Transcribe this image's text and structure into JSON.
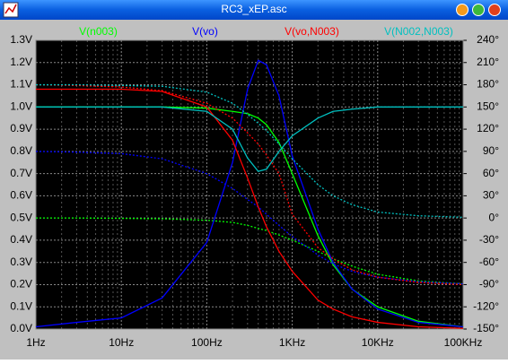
{
  "window": {
    "title": "RC3_xEP.asc"
  },
  "chart_data": {
    "type": "line",
    "xscale": "log",
    "grid": true,
    "x": [
      1,
      3,
      10,
      30,
      100,
      200,
      300,
      400,
      500,
      700,
      1000,
      2000,
      3000,
      5000,
      10000,
      30000,
      100000
    ],
    "xlim": [
      1,
      100000
    ],
    "xticks": [
      {
        "value": 1,
        "label": "1Hz"
      },
      {
        "value": 10,
        "label": "10Hz"
      },
      {
        "value": 100,
        "label": "100Hz"
      },
      {
        "value": 1000,
        "label": "1KHz"
      },
      {
        "value": 10000,
        "label": "10KHz"
      },
      {
        "value": 100000,
        "label": "100KHz"
      }
    ],
    "ylim": [
      0,
      1.3
    ],
    "yticks": [
      {
        "value": 0,
        "label": "0.0V"
      },
      {
        "value": 0.1,
        "label": "0.1V"
      },
      {
        "value": 0.2,
        "label": "0.2V"
      },
      {
        "value": 0.3,
        "label": "0.3V"
      },
      {
        "value": 0.4,
        "label": "0.4V"
      },
      {
        "value": 0.5,
        "label": "0.5V"
      },
      {
        "value": 0.6,
        "label": "0.6V"
      },
      {
        "value": 0.7,
        "label": "0.7V"
      },
      {
        "value": 0.8,
        "label": "0.8V"
      },
      {
        "value": 0.9,
        "label": "0.9V"
      },
      {
        "value": 1.0,
        "label": "1.0V"
      },
      {
        "value": 1.1,
        "label": "1.1V"
      },
      {
        "value": 1.2,
        "label": "1.2V"
      },
      {
        "value": 1.3,
        "label": "1.3V"
      }
    ],
    "y2lim": [
      -150,
      240
    ],
    "y2ticks": [
      {
        "value": -150,
        "label": "-150°"
      },
      {
        "value": -120,
        "label": "-120°"
      },
      {
        "value": -90,
        "label": "-90°"
      },
      {
        "value": -60,
        "label": "-60°"
      },
      {
        "value": -30,
        "label": "-30°"
      },
      {
        "value": 0,
        "label": "0°"
      },
      {
        "value": 30,
        "label": "30°"
      },
      {
        "value": 60,
        "label": "60°"
      },
      {
        "value": 90,
        "label": "90°"
      },
      {
        "value": 120,
        "label": "120°"
      },
      {
        "value": 150,
        "label": "150°"
      },
      {
        "value": 180,
        "label": "180°"
      },
      {
        "value": 210,
        "label": "210°"
      },
      {
        "value": 240,
        "label": "240°"
      }
    ],
    "series": [
      {
        "name": "V(n003)",
        "color": "#00ff00",
        "values": [
          1.0,
          1.0,
          1.0,
          1.0,
          0.995,
          0.98,
          0.97,
          0.95,
          0.92,
          0.84,
          0.7,
          0.42,
          0.29,
          0.18,
          0.1,
          0.035,
          0.01
        ],
        "phase": [
          0,
          0,
          -0.5,
          -1,
          -3,
          -6,
          -10,
          -14,
          -17,
          -23,
          -30,
          -45,
          -55,
          -65,
          -76,
          -85,
          -89
        ]
      },
      {
        "name": "V(vo)",
        "color": "#0000ff",
        "values": [
          0.01,
          0.03,
          0.05,
          0.14,
          0.39,
          0.75,
          1.08,
          1.21,
          1.19,
          1.05,
          0.78,
          0.45,
          0.3,
          0.18,
          0.09,
          0.03,
          0.01
        ],
        "phase": [
          90,
          89,
          87,
          80,
          60,
          40,
          25,
          15,
          5,
          -10,
          -25,
          -50,
          -62,
          -72,
          -80,
          -86,
          -89
        ]
      },
      {
        "name": "V(vo,N003)",
        "color": "#ff0000",
        "values": [
          1.08,
          1.08,
          1.08,
          1.07,
          1.0,
          0.85,
          0.68,
          0.55,
          0.46,
          0.35,
          0.26,
          0.13,
          0.09,
          0.055,
          0.03,
          0.01,
          0.003
        ],
        "phase": [
          180,
          179,
          177,
          172,
          155,
          135,
          115,
          100,
          85,
          60,
          5,
          -40,
          -55,
          -70,
          -80,
          -87,
          -90
        ]
      },
      {
        "name": "V(N002,N003)",
        "color": "#00c0c0",
        "values": [
          1.0,
          1.0,
          1.0,
          1.0,
          0.98,
          0.9,
          0.77,
          0.71,
          0.72,
          0.8,
          0.87,
          0.95,
          0.98,
          0.99,
          1.0,
          1.0,
          1.0
        ],
        "phase": [
          180,
          180,
          179,
          178,
          170,
          155,
          140,
          128,
          118,
          100,
          80,
          45,
          30,
          18,
          8,
          3,
          1
        ]
      }
    ]
  }
}
